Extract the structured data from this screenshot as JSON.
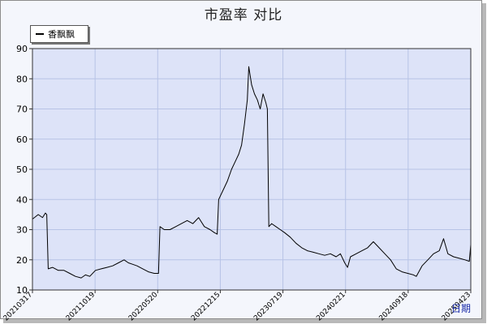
{
  "chart_data": {
    "type": "line",
    "title": "市盈率  对比",
    "xlabel": "日期",
    "ylabel": "",
    "ylim": [
      10,
      90
    ],
    "y_ticks": [
      10,
      20,
      30,
      40,
      50,
      60,
      70,
      80,
      90
    ],
    "x_tick_labels": [
      "20210317",
      "20211019",
      "20220520",
      "20221215",
      "20230719",
      "20240221",
      "20240918",
      "20250423"
    ],
    "grid": true,
    "legend_position": "top-left",
    "series": [
      {
        "name": "香飘飘",
        "color": "#000000",
        "points": [
          [
            0,
            33.5
          ],
          [
            4,
            35
          ],
          [
            7,
            34
          ],
          [
            9,
            35.5
          ],
          [
            10,
            35
          ],
          [
            11,
            17
          ],
          [
            14,
            17.5
          ],
          [
            18,
            16.5
          ],
          [
            22,
            16.5
          ],
          [
            26,
            15.5
          ],
          [
            30,
            14.5
          ],
          [
            34,
            14
          ],
          [
            37,
            15
          ],
          [
            40,
            14.5
          ],
          [
            44,
            16.5
          ],
          [
            48,
            17
          ],
          [
            52,
            17.5
          ],
          [
            56,
            18
          ],
          [
            60,
            19
          ],
          [
            64,
            20
          ],
          [
            67,
            19
          ],
          [
            70,
            18.5
          ],
          [
            73,
            18
          ],
          [
            77,
            17
          ],
          [
            81,
            16
          ],
          [
            85,
            15.5
          ],
          [
            88,
            15.5
          ],
          [
            89,
            31
          ],
          [
            92,
            30
          ],
          [
            96,
            30
          ],
          [
            100,
            31
          ],
          [
            104,
            32
          ],
          [
            108,
            33
          ],
          [
            112,
            32
          ],
          [
            116,
            34
          ],
          [
            120,
            31
          ],
          [
            124,
            30
          ],
          [
            127,
            29
          ],
          [
            129,
            28.5
          ],
          [
            130,
            40
          ],
          [
            133,
            43
          ],
          [
            136,
            46
          ],
          [
            139,
            50
          ],
          [
            142,
            53
          ],
          [
            144,
            55
          ],
          [
            146,
            58
          ],
          [
            148,
            65
          ],
          [
            150,
            73
          ],
          [
            151,
            84
          ],
          [
            153,
            78
          ],
          [
            155,
            75
          ],
          [
            157,
            73
          ],
          [
            159,
            70
          ],
          [
            161,
            75
          ],
          [
            163,
            72
          ],
          [
            164,
            70
          ],
          [
            165,
            31
          ],
          [
            167,
            32
          ],
          [
            170,
            31
          ],
          [
            173,
            30
          ],
          [
            176,
            29
          ],
          [
            180,
            27.5
          ],
          [
            184,
            25.5
          ],
          [
            188,
            24
          ],
          [
            192,
            23
          ],
          [
            196,
            22.5
          ],
          [
            200,
            22
          ],
          [
            204,
            21.5
          ],
          [
            208,
            22
          ],
          [
            212,
            21
          ],
          [
            215,
            22
          ],
          [
            218,
            19
          ],
          [
            220,
            17.5
          ],
          [
            222,
            21
          ],
          [
            226,
            22
          ],
          [
            230,
            23
          ],
          [
            234,
            24
          ],
          [
            238,
            26
          ],
          [
            242,
            24
          ],
          [
            246,
            22
          ],
          [
            250,
            20
          ],
          [
            254,
            17
          ],
          [
            258,
            16
          ],
          [
            262,
            15.5
          ],
          [
            266,
            15
          ],
          [
            268,
            14.5
          ],
          [
            272,
            18
          ],
          [
            276,
            20
          ],
          [
            280,
            22
          ],
          [
            284,
            23
          ],
          [
            287,
            27
          ],
          [
            290,
            22
          ],
          [
            294,
            21
          ],
          [
            298,
            20.5
          ],
          [
            302,
            20
          ],
          [
            305,
            19.5
          ],
          [
            306,
            25
          ]
        ]
      }
    ]
  }
}
